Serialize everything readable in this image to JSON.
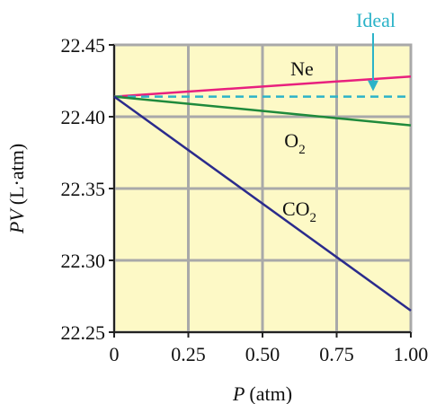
{
  "colors": {
    "background": "#ffffff",
    "plot_fill": "#fdf9c6",
    "grid": "#a9a9a9",
    "axis": "#222222"
  },
  "chart_data": {
    "type": "line",
    "xlabel": "(atm)",
    "xlabel_var": "P",
    "ylabel": "(L·atm)",
    "ylabel_var": "PV",
    "xlim": [
      0,
      1.0
    ],
    "ylim": [
      22.25,
      22.45
    ],
    "x_ticks": [
      0,
      0.25,
      0.5,
      0.75,
      1.0
    ],
    "x_tick_labels": [
      "0",
      "0.25",
      "0.50",
      "0.75",
      "1.00"
    ],
    "y_ticks": [
      22.25,
      22.3,
      22.35,
      22.4,
      22.45
    ],
    "y_tick_labels": [
      "22.25",
      "22.30",
      "22.35",
      "22.40",
      "22.45"
    ],
    "grid": true,
    "series": [
      {
        "name": "Ne",
        "sub": "",
        "color": "#e8207e",
        "dash": false,
        "x": [
          0,
          1.0
        ],
        "y": [
          22.414,
          22.428
        ]
      },
      {
        "name": "Ideal",
        "sub": "",
        "color": "#2bb3c8",
        "dash": true,
        "x": [
          0,
          1.0
        ],
        "y": [
          22.414,
          22.414
        ]
      },
      {
        "name": "O",
        "sub": "2",
        "color": "#1f8a3c",
        "dash": false,
        "x": [
          0,
          1.0
        ],
        "y": [
          22.414,
          22.394
        ]
      },
      {
        "name": "CO",
        "sub": "2",
        "color": "#2b2b8c",
        "dash": false,
        "x": [
          0,
          1.0
        ],
        "y": [
          22.414,
          22.265
        ]
      }
    ]
  }
}
